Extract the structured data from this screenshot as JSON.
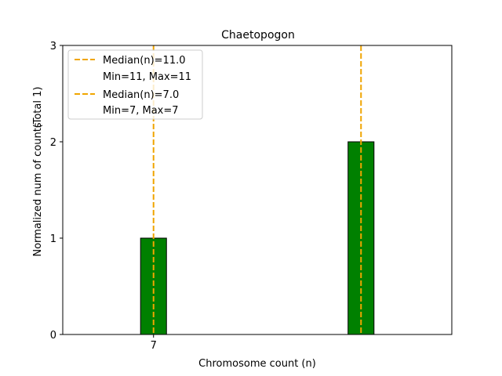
{
  "chart_data": {
    "type": "bar",
    "title": "Chaetopogon",
    "xlabel": "Chromosome count (n)",
    "ylabel": "Normalized num of counts",
    "ylabel_note": "(Total 1)",
    "xlim": [
      5.25,
      12.75
    ],
    "ylim": [
      0,
      3
    ],
    "x_ticks": [
      7
    ],
    "y_ticks": [
      0,
      1,
      2,
      3
    ],
    "grid": false,
    "legend_position": "top-left",
    "bar_width": 0.5,
    "bar_color": "#008000",
    "bars": [
      {
        "x": 7,
        "value": 1
      },
      {
        "x": 11,
        "value": 2
      }
    ],
    "median_lines": [
      {
        "x": 11.0,
        "label": "Median(n)=11.0",
        "sublabel": "Min=11, Max=11",
        "color": "#f0a500"
      },
      {
        "x": 7.0,
        "label": "Median(n)=7.0",
        "sublabel": "Min=7, Max=7",
        "color": "#f0a500"
      }
    ]
  }
}
